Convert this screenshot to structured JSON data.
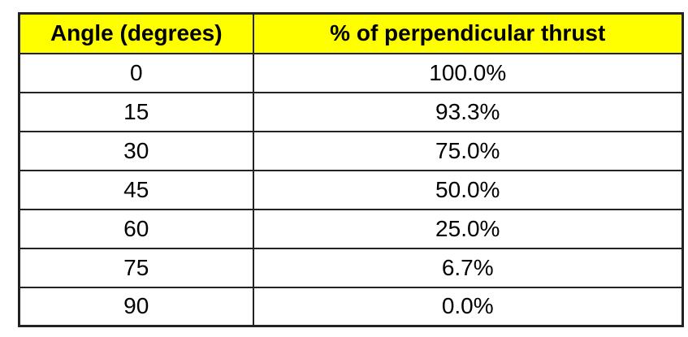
{
  "table": {
    "headers": [
      "Angle (degrees)",
      "% of perpendicular thrust"
    ],
    "rows": [
      [
        "0",
        "100.0%"
      ],
      [
        "15",
        "93.3%"
      ],
      [
        "30",
        "75.0%"
      ],
      [
        "45",
        "50.0%"
      ],
      [
        "60",
        "25.0%"
      ],
      [
        "75",
        "6.7%"
      ],
      [
        "90",
        "0.0%"
      ]
    ],
    "colors": {
      "header_bg": "#ffff00",
      "header_text": "#000000",
      "body_text": "#000000",
      "border": "#222222",
      "page_bg": "#ffffff"
    }
  },
  "chart_data": {
    "type": "table",
    "title": "",
    "columns": [
      "Angle (degrees)",
      "% of perpendicular thrust"
    ],
    "categories": [
      0,
      15,
      30,
      45,
      60,
      75,
      90
    ],
    "series": [
      {
        "name": "% of perpendicular thrust",
        "values": [
          100.0,
          93.3,
          75.0,
          50.0,
          25.0,
          6.7,
          0.0
        ]
      }
    ],
    "xlabel": "Angle (degrees)",
    "ylabel": "% of perpendicular thrust"
  }
}
